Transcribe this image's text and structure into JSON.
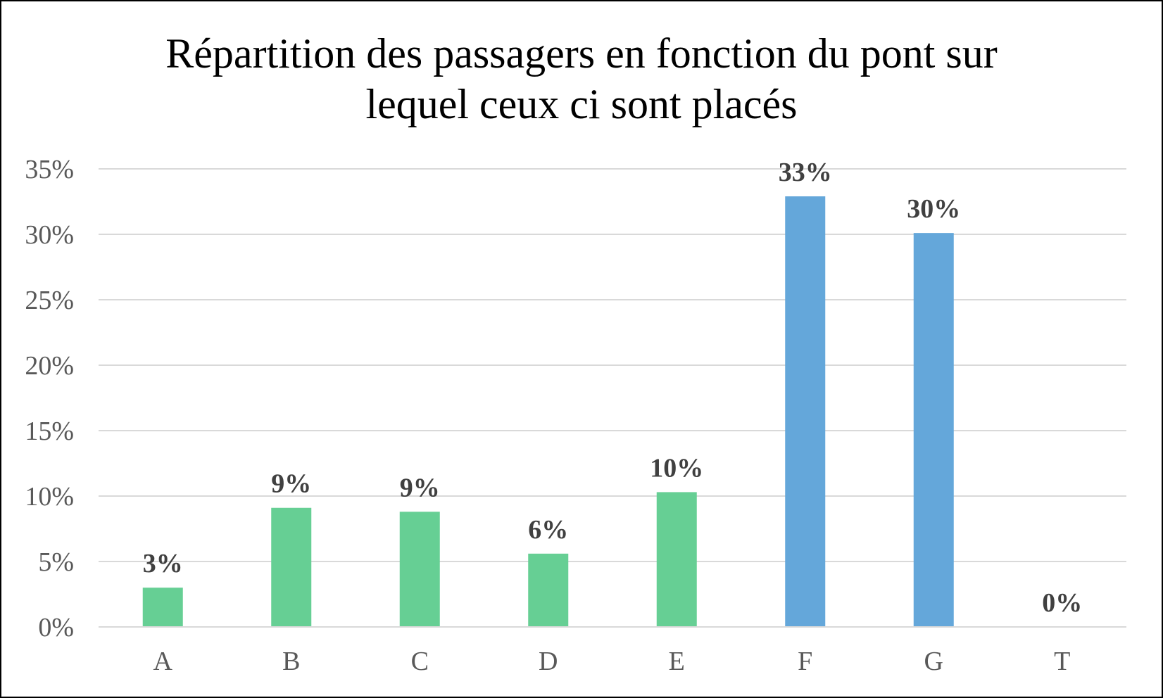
{
  "chart_data": {
    "type": "bar",
    "title_lines": [
      "Répartition des passagers en fonction du pont sur",
      "lequel ceux ci sont placés"
    ],
    "categories": [
      "A",
      "B",
      "C",
      "D",
      "E",
      "F",
      "G",
      "T"
    ],
    "values": [
      3,
      9.1,
      8.8,
      5.6,
      10.3,
      32.9,
      30.1,
      0
    ],
    "data_labels": [
      "3%",
      "9%",
      "9%",
      "6%",
      "10%",
      "33%",
      "30%",
      "0%"
    ],
    "bar_colors": [
      "#66cf94",
      "#66cf94",
      "#66cf94",
      "#66cf94",
      "#66cf94",
      "#64a7da",
      "#64a7da",
      "#64a7da"
    ],
    "ylim": [
      0,
      35
    ],
    "yticks": [
      0,
      5,
      10,
      15,
      20,
      25,
      30,
      35
    ],
    "ytick_labels": [
      "0%",
      "5%",
      "10%",
      "15%",
      "20%",
      "25%",
      "30%",
      "35%"
    ],
    "grid": true,
    "legend": "none",
    "xlabel": "",
    "ylabel": ""
  }
}
